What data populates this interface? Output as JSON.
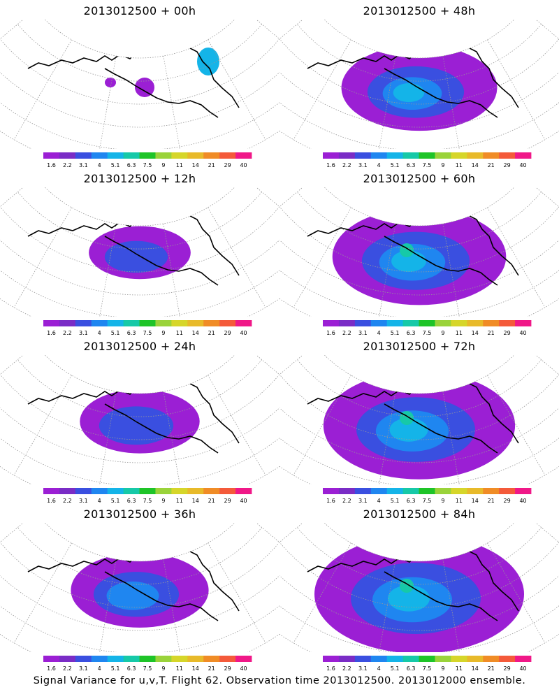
{
  "panels": [
    {
      "title": "2013012500 + 00h",
      "lead_hours": 0
    },
    {
      "title": "2013012500 + 48h",
      "lead_hours": 48
    },
    {
      "title": "2013012500 + 12h",
      "lead_hours": 12
    },
    {
      "title": "2013012500 + 60h",
      "lead_hours": 60
    },
    {
      "title": "2013012500 + 24h",
      "lead_hours": 24
    },
    {
      "title": "2013012500 + 72h",
      "lead_hours": 72
    },
    {
      "title": "2013012500 + 36h",
      "lead_hours": 36
    },
    {
      "title": "2013012500 + 84h",
      "lead_hours": 84
    }
  ],
  "colorbar": {
    "labels": [
      "1.6",
      "2.2",
      "3.1",
      "4",
      "5.1",
      "6.3",
      "7.5",
      "9",
      "11",
      "14",
      "21",
      "29",
      "40"
    ],
    "colors": [
      "#9b1fd4",
      "#7a2cc6",
      "#3a4fe0",
      "#1f86f0",
      "#14b4e8",
      "#16c9a8",
      "#1ec428",
      "#9ad33a",
      "#d6d62a",
      "#e8ba2a",
      "#f08c26",
      "#f45a3a",
      "#f01888"
    ]
  },
  "caption": "Signal Variance for u,v,T. Flight 62. Observation time 2013012500. 2013012000 ensemble."
}
